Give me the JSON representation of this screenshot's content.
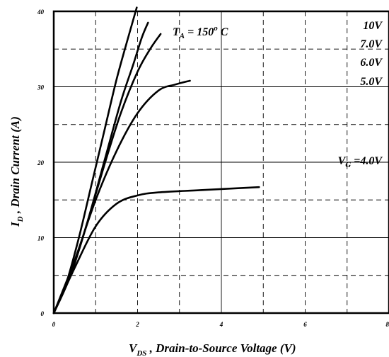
{
  "chart_data": {
    "type": "line",
    "title": "",
    "xlabel": {
      "main": "V",
      "sub": "DS",
      "rest": " , Drain-to-Source Voltage (V)"
    },
    "ylabel": {
      "main": "I",
      "sub": "D",
      "rest": " , Drain Current (A)"
    },
    "xlim": [
      0,
      8
    ],
    "ylim": [
      0,
      40
    ],
    "x_ticks": [
      0,
      2,
      4,
      6,
      8
    ],
    "y_ticks": [
      0,
      10,
      20,
      30,
      40
    ],
    "x_tick_labels": [
      "0",
      "2",
      "4",
      "6",
      "8"
    ],
    "y_tick_labels": [
      "0",
      "10",
      "20",
      "30",
      "40"
    ],
    "solid_grid_x": [
      0,
      4,
      8
    ],
    "dashed_grid_x": [
      1,
      2,
      3,
      5,
      6,
      7
    ],
    "solid_grid_y": [
      0,
      10,
      20,
      30,
      40
    ],
    "dashed_grid_y": [
      5,
      15,
      25,
      35
    ],
    "grid": true,
    "annotation_temp": {
      "t": "T",
      "sub": "A",
      "rest": " = 150",
      "sup": "o",
      "unit": " C"
    },
    "annotation_vg": {
      "v": "V",
      "sub": "G",
      "rest": " =4.0V"
    },
    "series": [
      {
        "label": "10V",
        "points": [
          [
            0,
            0
          ],
          [
            0.3,
            4
          ],
          [
            0.6,
            10
          ],
          [
            0.9,
            17
          ],
          [
            1.2,
            24
          ],
          [
            1.5,
            31
          ],
          [
            1.8,
            37
          ],
          [
            1.98,
            40.5
          ]
        ]
      },
      {
        "label": "7.0V",
        "points": [
          [
            0,
            0
          ],
          [
            0.4,
            5
          ],
          [
            0.8,
            12
          ],
          [
            1.2,
            20
          ],
          [
            1.6,
            28
          ],
          [
            1.9,
            33
          ],
          [
            2.1,
            36.5
          ],
          [
            2.25,
            38.5
          ]
        ]
      },
      {
        "label": "6.0V",
        "points": [
          [
            0,
            0
          ],
          [
            0.4,
            5
          ],
          [
            0.8,
            12
          ],
          [
            1.2,
            19.5
          ],
          [
            1.6,
            26.5
          ],
          [
            2.0,
            32
          ],
          [
            2.3,
            35
          ],
          [
            2.55,
            37
          ]
        ]
      },
      {
        "label": "5.0V",
        "points": [
          [
            0,
            0
          ],
          [
            0.5,
            7
          ],
          [
            1.0,
            15
          ],
          [
            1.5,
            21.5
          ],
          [
            2.0,
            26.5
          ],
          [
            2.5,
            29.5
          ],
          [
            2.9,
            30.3
          ],
          [
            3.25,
            30.8
          ]
        ]
      },
      {
        "label": "",
        "points": [
          [
            0,
            0
          ],
          [
            0.5,
            6
          ],
          [
            1.0,
            11.5
          ],
          [
            1.5,
            14.5
          ],
          [
            2.0,
            15.6
          ],
          [
            2.5,
            16
          ],
          [
            3.5,
            16.3
          ],
          [
            4.9,
            16.7
          ]
        ]
      }
    ]
  }
}
